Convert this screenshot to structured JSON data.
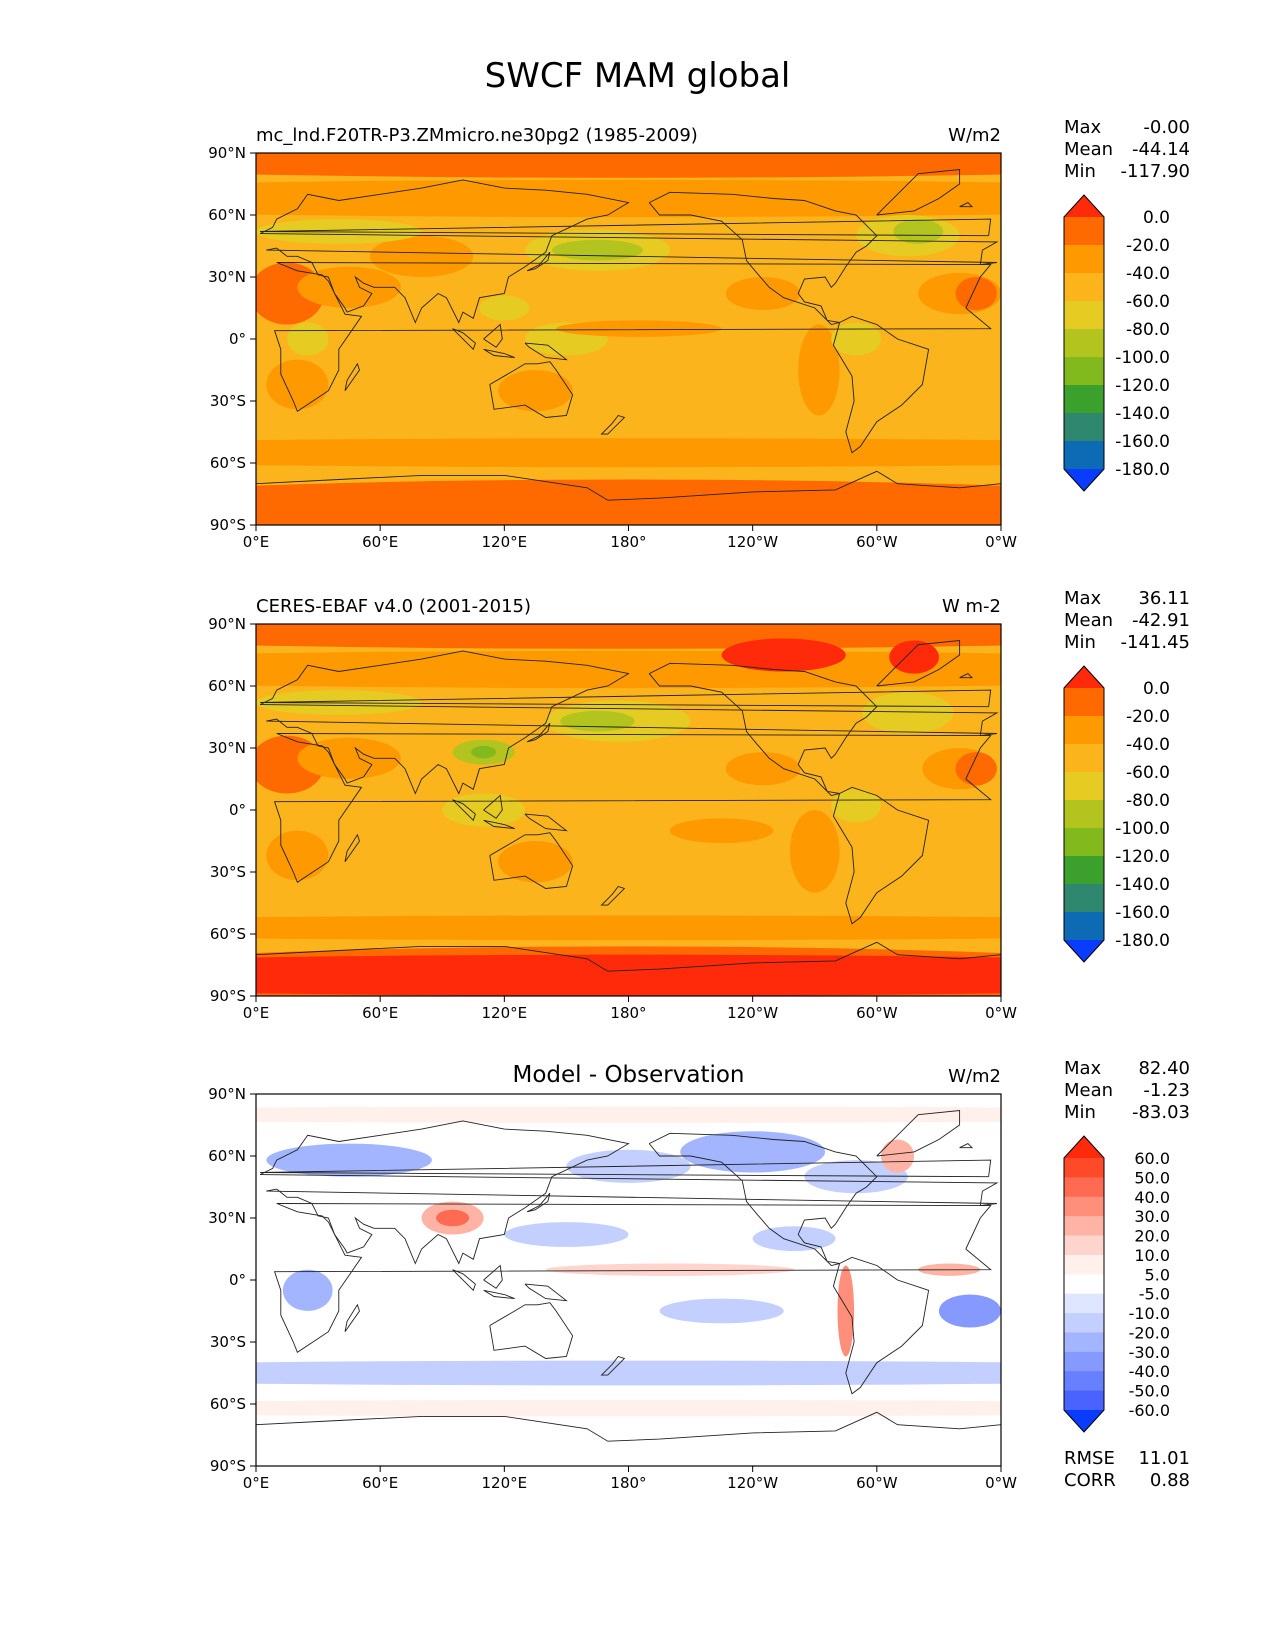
{
  "figure": {
    "title": "SWCF MAM global"
  },
  "chart_data": [
    {
      "type": "heatmap",
      "title": "",
      "left_label": "mc_lnd.F20TR-P3.ZMmicro.ne30pg2 (1985-2009)",
      "units": "W/m2",
      "x_ticks": [
        "0°E",
        "60°E",
        "120°E",
        "180°",
        "120°W",
        "60°W",
        "0°W"
      ],
      "y_ticks": [
        "90°N",
        "60°N",
        "30°N",
        "0°",
        "30°S",
        "60°S",
        "90°S"
      ],
      "xlim": [
        0,
        360
      ],
      "ylim": [
        -90,
        90
      ],
      "stats": [
        {
          "label": "Max",
          "value": "-0.00"
        },
        {
          "label": "Mean",
          "value": "-44.14"
        },
        {
          "label": "Min",
          "value": "-117.90"
        }
      ],
      "colorbar": {
        "labels": [
          "0.0",
          "-20.0",
          "-40.0",
          "-60.0",
          "-80.0",
          "-100.0",
          "-120.0",
          "-140.0",
          "-160.0",
          "-180.0"
        ],
        "colors": [
          "#ff2a0a",
          "#ff6a00",
          "#ff9900",
          "#fbb41c",
          "#e6cc22",
          "#b4c41e",
          "#82b91d",
          "#3ca02c",
          "#2f8770",
          "#0d6bb5",
          "#0a3cff"
        ]
      },
      "field": {
        "base": 3,
        "colors": [
          "#ff2a0a",
          "#ff6a00",
          "#ff9900",
          "#fbb41c",
          "#e6cc22",
          "#b4c41e",
          "#82b91d"
        ],
        "blobs": [
          {
            "lon": 180,
            "lat": 90,
            "rlon": 360,
            "rlat": 12,
            "level": 1
          },
          {
            "lon": 180,
            "lat": -90,
            "rlon": 360,
            "rlat": 22,
            "level": 1
          },
          {
            "lon": 180,
            "lat": 68,
            "rlon": 360,
            "rlat": 9,
            "level": 2
          },
          {
            "lon": 180,
            "lat": -55,
            "rlon": 360,
            "rlat": 7,
            "level": 2
          },
          {
            "lon": 15,
            "lat": 22,
            "rlon": 18,
            "rlat": 15,
            "level": 1
          },
          {
            "lon": 45,
            "lat": 25,
            "rlon": 25,
            "rlat": 10,
            "level": 2
          },
          {
            "lon": 80,
            "lat": 40,
            "rlon": 25,
            "rlat": 10,
            "level": 2
          },
          {
            "lon": 340,
            "lat": 22,
            "rlon": 20,
            "rlat": 10,
            "level": 2
          },
          {
            "lon": 348,
            "lat": 22,
            "rlon": 10,
            "rlat": 8,
            "level": 1
          },
          {
            "lon": 245,
            "lat": 22,
            "rlon": 18,
            "rlat": 8,
            "level": 2
          },
          {
            "lon": 272,
            "lat": -15,
            "rlon": 10,
            "rlat": 22,
            "level": 2
          },
          {
            "lon": 135,
            "lat": -25,
            "rlon": 18,
            "rlat": 10,
            "level": 2
          },
          {
            "lon": 20,
            "lat": -22,
            "rlon": 15,
            "rlat": 12,
            "level": 2
          },
          {
            "lon": 165,
            "lat": 43,
            "rlon": 35,
            "rlat": 10,
            "level": 4
          },
          {
            "lon": 165,
            "lat": 43,
            "rlon": 22,
            "rlat": 5,
            "level": 5
          },
          {
            "lon": 315,
            "lat": 50,
            "rlon": 25,
            "rlat": 10,
            "level": 4
          },
          {
            "lon": 320,
            "lat": 52,
            "rlon": 12,
            "rlat": 6,
            "level": 5
          },
          {
            "lon": 40,
            "lat": 52,
            "rlon": 40,
            "rlat": 6,
            "level": 4
          },
          {
            "lon": 150,
            "lat": 0,
            "rlon": 20,
            "rlat": 8,
            "level": 4
          },
          {
            "lon": 290,
            "lat": 0,
            "rlon": 12,
            "rlat": 8,
            "level": 4
          },
          {
            "lon": 25,
            "lat": 0,
            "rlon": 10,
            "rlat": 8,
            "level": 4
          },
          {
            "lon": 120,
            "lat": 15,
            "rlon": 12,
            "rlat": 6,
            "level": 4
          },
          {
            "lon": 185,
            "lat": 5,
            "rlon": 40,
            "rlat": 4,
            "level": 2
          }
        ]
      }
    },
    {
      "type": "heatmap",
      "title": "",
      "left_label": "CERES-EBAF v4.0 (2001-2015)",
      "units": "W m-2",
      "x_ticks": [
        "0°E",
        "60°E",
        "120°E",
        "180°",
        "120°W",
        "60°W",
        "0°W"
      ],
      "y_ticks": [
        "90°N",
        "60°N",
        "30°N",
        "0°",
        "30°S",
        "60°S",
        "90°S"
      ],
      "xlim": [
        0,
        360
      ],
      "ylim": [
        -90,
        90
      ],
      "stats": [
        {
          "label": "Max",
          "value": "36.11"
        },
        {
          "label": "Mean",
          "value": "-42.91"
        },
        {
          "label": "Min",
          "value": "-141.45"
        }
      ],
      "colorbar": {
        "labels": [
          "0.0",
          "-20.0",
          "-40.0",
          "-60.0",
          "-80.0",
          "-100.0",
          "-120.0",
          "-140.0",
          "-160.0",
          "-180.0"
        ],
        "colors": [
          "#ff2a0a",
          "#ff6a00",
          "#ff9900",
          "#fbb41c",
          "#e6cc22",
          "#b4c41e",
          "#82b91d",
          "#3ca02c",
          "#2f8770",
          "#0d6bb5",
          "#0a3cff"
        ]
      },
      "field": {
        "base": 3,
        "colors": [
          "#ff2a0a",
          "#ff6a00",
          "#ff9900",
          "#fbb41c",
          "#e6cc22",
          "#b4c41e",
          "#82b91d"
        ],
        "blobs": [
          {
            "lon": 180,
            "lat": 90,
            "rlon": 360,
            "rlat": 12,
            "level": 1
          },
          {
            "lon": 180,
            "lat": -90,
            "rlon": 360,
            "rlat": 24,
            "level": 1
          },
          {
            "lon": 180,
            "lat": -80,
            "rlon": 360,
            "rlat": 10,
            "level": 0
          },
          {
            "lon": 180,
            "lat": 68,
            "rlon": 360,
            "rlat": 9,
            "level": 2
          },
          {
            "lon": 180,
            "lat": -57,
            "rlon": 360,
            "rlat": 6,
            "level": 2
          },
          {
            "lon": 255,
            "lat": 75,
            "rlon": 30,
            "rlat": 8,
            "level": 0
          },
          {
            "lon": 318,
            "lat": 74,
            "rlon": 12,
            "rlat": 8,
            "level": 0
          },
          {
            "lon": 15,
            "lat": 22,
            "rlon": 18,
            "rlat": 14,
            "level": 1
          },
          {
            "lon": 45,
            "lat": 25,
            "rlon": 25,
            "rlat": 10,
            "level": 2
          },
          {
            "lon": 340,
            "lat": 20,
            "rlon": 18,
            "rlat": 10,
            "level": 2
          },
          {
            "lon": 348,
            "lat": 20,
            "rlon": 10,
            "rlat": 8,
            "level": 1
          },
          {
            "lon": 245,
            "lat": 20,
            "rlon": 18,
            "rlat": 8,
            "level": 2
          },
          {
            "lon": 270,
            "lat": -20,
            "rlon": 12,
            "rlat": 20,
            "level": 2
          },
          {
            "lon": 225,
            "lat": -10,
            "rlon": 25,
            "rlat": 6,
            "level": 2
          },
          {
            "lon": 135,
            "lat": -25,
            "rlon": 18,
            "rlat": 10,
            "level": 2
          },
          {
            "lon": 20,
            "lat": -22,
            "rlon": 15,
            "rlat": 12,
            "level": 2
          },
          {
            "lon": 175,
            "lat": 43,
            "rlon": 35,
            "rlat": 10,
            "level": 4
          },
          {
            "lon": 165,
            "lat": 43,
            "rlon": 18,
            "rlat": 5,
            "level": 5
          },
          {
            "lon": 315,
            "lat": 47,
            "rlon": 22,
            "rlat": 10,
            "level": 4
          },
          {
            "lon": 40,
            "lat": 52,
            "rlon": 40,
            "rlat": 6,
            "level": 4
          },
          {
            "lon": 110,
            "lat": 28,
            "rlon": 15,
            "rlat": 6,
            "level": 5
          },
          {
            "lon": 110,
            "lat": 28,
            "rlon": 6,
            "rlat": 3,
            "level": 6
          },
          {
            "lon": 290,
            "lat": 2,
            "rlon": 12,
            "rlat": 8,
            "level": 4
          },
          {
            "lon": 110,
            "lat": 0,
            "rlon": 20,
            "rlat": 8,
            "level": 4
          }
        ]
      }
    },
    {
      "type": "heatmap",
      "title": "Model - Observation",
      "left_label": "",
      "units": "W/m2",
      "x_ticks": [
        "0°E",
        "60°E",
        "120°E",
        "180°",
        "120°W",
        "60°W",
        "0°W"
      ],
      "y_ticks": [
        "90°N",
        "60°N",
        "30°N",
        "0°",
        "30°S",
        "60°S",
        "90°S"
      ],
      "xlim": [
        0,
        360
      ],
      "ylim": [
        -90,
        90
      ],
      "stats": [
        {
          "label": "Max",
          "value": "82.40"
        },
        {
          "label": "Mean",
          "value": "-1.23"
        },
        {
          "label": "Min",
          "value": "-83.03"
        }
      ],
      "extra_stats": [
        {
          "label": "RMSE",
          "value": "11.01"
        },
        {
          "label": "CORR",
          "value": "0.88"
        }
      ],
      "colorbar": {
        "labels": [
          "60.0",
          "50.0",
          "40.0",
          "30.0",
          "20.0",
          "10.0",
          "5.0",
          "-5.0",
          "-10.0",
          "-20.0",
          "-30.0",
          "-40.0",
          "-50.0",
          "-60.0"
        ],
        "colors": [
          "#ff2a0a",
          "#ff4a2a",
          "#ff6a52",
          "#ff8f7a",
          "#ffb3a4",
          "#ffd4cc",
          "#fff0ec",
          "#ffffff",
          "#dfe6ff",
          "#c3cfff",
          "#a3b5ff",
          "#8599ff",
          "#6680ff",
          "#4a63ff",
          "#0a3cff"
        ]
      },
      "field": {
        "base": 7,
        "colors": [
          "#ff2a0a",
          "#ff4a2a",
          "#ff6a52",
          "#ff8f7a",
          "#ffb3a4",
          "#ffd4cc",
          "#fff0ec",
          "#ffffff",
          "#dfe6ff",
          "#c3cfff",
          "#a3b5ff",
          "#8599ff",
          "#6680ff",
          "#4a63ff",
          "#0a3cff"
        ],
        "blobs": [
          {
            "lon": 45,
            "lat": 58,
            "rlon": 40,
            "rlat": 8,
            "level": 10
          },
          {
            "lon": 240,
            "lat": 62,
            "rlon": 35,
            "rlat": 10,
            "level": 10
          },
          {
            "lon": 180,
            "lat": 55,
            "rlon": 30,
            "rlat": 8,
            "level": 9
          },
          {
            "lon": 290,
            "lat": 50,
            "rlon": 25,
            "rlat": 8,
            "level": 9
          },
          {
            "lon": 95,
            "lat": 30,
            "rlon": 15,
            "rlat": 8,
            "level": 4
          },
          {
            "lon": 95,
            "lat": 30,
            "rlon": 8,
            "rlat": 4,
            "level": 2
          },
          {
            "lon": 200,
            "lat": 5,
            "rlon": 60,
            "rlat": 3,
            "level": 5
          },
          {
            "lon": 335,
            "lat": 5,
            "rlon": 15,
            "rlat": 3,
            "level": 4
          },
          {
            "lon": 285,
            "lat": -15,
            "rlon": 4,
            "rlat": 22,
            "level": 3
          },
          {
            "lon": 25,
            "lat": -5,
            "rlon": 12,
            "rlat": 10,
            "level": 10
          },
          {
            "lon": 345,
            "lat": -15,
            "rlon": 15,
            "rlat": 8,
            "level": 11
          },
          {
            "lon": 225,
            "lat": -15,
            "rlon": 30,
            "rlat": 6,
            "level": 9
          },
          {
            "lon": 260,
            "lat": 20,
            "rlon": 20,
            "rlat": 6,
            "level": 9
          },
          {
            "lon": 180,
            "lat": -45,
            "rlon": 360,
            "rlat": 6,
            "level": 9
          },
          {
            "lon": 180,
            "lat": -62,
            "rlon": 360,
            "rlat": 4,
            "level": 6
          },
          {
            "lon": 180,
            "lat": 80,
            "rlon": 360,
            "rlat": 4,
            "level": 6
          },
          {
            "lon": 150,
            "lat": 22,
            "rlon": 30,
            "rlat": 6,
            "level": 9
          },
          {
            "lon": 310,
            "lat": 60,
            "rlon": 8,
            "rlat": 8,
            "level": 4
          }
        ]
      }
    }
  ]
}
